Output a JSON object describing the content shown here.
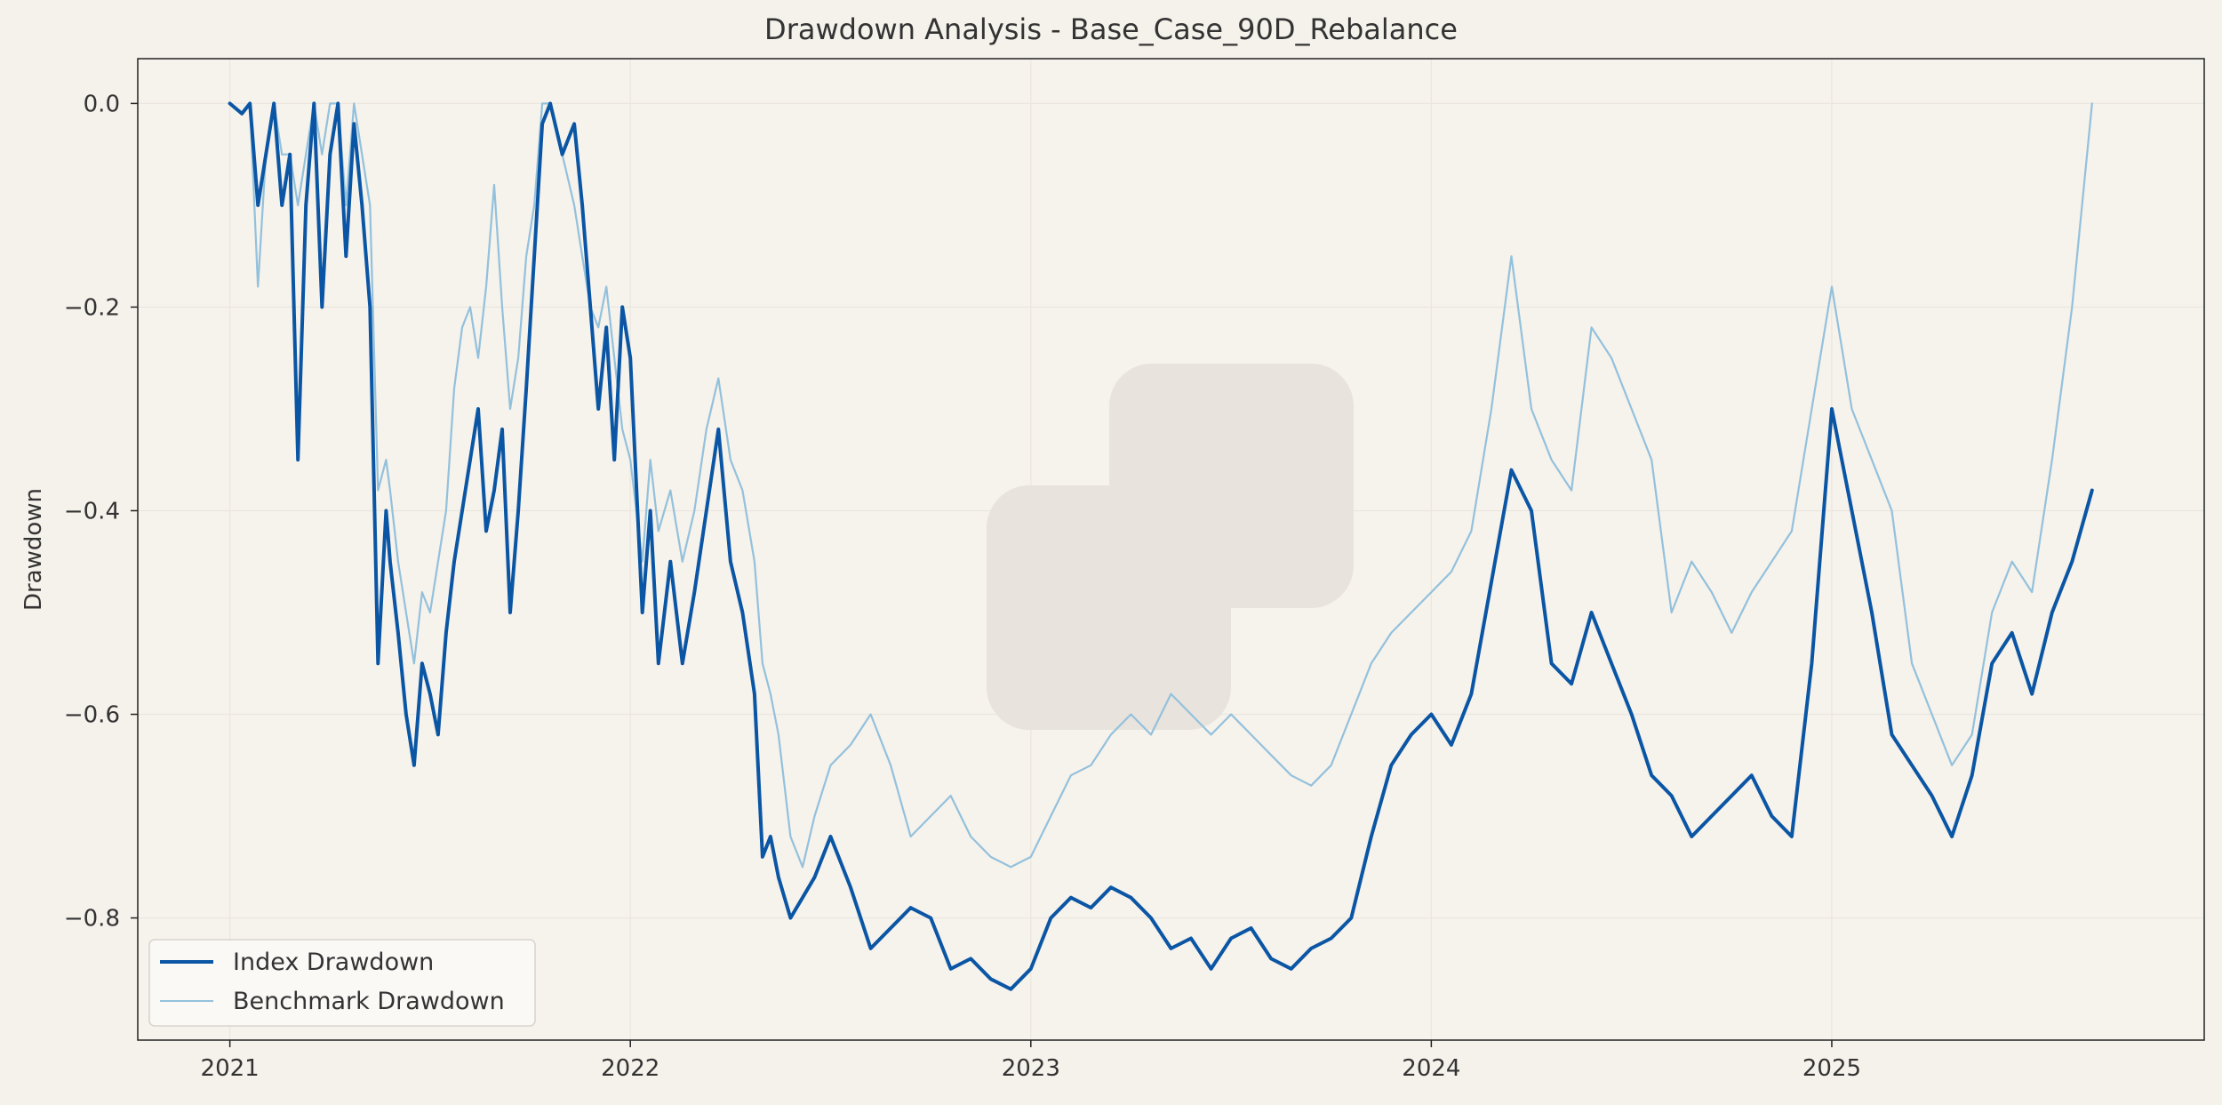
{
  "colors": {
    "background": "#f5f1eb",
    "plot_background": "#f6f2ec",
    "index_line": "#0b56a4",
    "benchmark_line": "#93c1dc",
    "grid": "#ebe6de",
    "watermark": "#e8e3dd",
    "axis": "#222222",
    "text": "#333333"
  },
  "chart_data": {
    "type": "line",
    "title": "Drawdown Analysis - Base_Case_90D_Rebalance",
    "xlabel": "",
    "ylabel": "Drawdown",
    "xlim": [
      2020.77,
      2025.93
    ],
    "ylim": [
      -0.92,
      0.044
    ],
    "grid": true,
    "legend": "lower-left",
    "x_ticks": [
      {
        "value": 2021,
        "label": "2021"
      },
      {
        "value": 2022,
        "label": "2022"
      },
      {
        "value": 2023,
        "label": "2023"
      },
      {
        "value": 2024,
        "label": "2024"
      },
      {
        "value": 2025,
        "label": "2025"
      }
    ],
    "y_ticks": [
      {
        "value": 0.0,
        "label": "0.0"
      },
      {
        "value": -0.2,
        "label": "−0.2"
      },
      {
        "value": -0.4,
        "label": "−0.4"
      },
      {
        "value": -0.6,
        "label": "−0.6"
      },
      {
        "value": -0.8,
        "label": "−0.8"
      }
    ],
    "series": [
      {
        "name": "Index Drawdown",
        "x": [
          2021.0,
          2021.03,
          2021.05,
          2021.07,
          2021.09,
          2021.11,
          2021.13,
          2021.15,
          2021.17,
          2021.19,
          2021.21,
          2021.23,
          2021.25,
          2021.27,
          2021.29,
          2021.31,
          2021.33,
          2021.35,
          2021.37,
          2021.39,
          2021.4,
          2021.42,
          2021.44,
          2021.46,
          2021.48,
          2021.5,
          2021.52,
          2021.54,
          2021.56,
          2021.58,
          2021.6,
          2021.62,
          2021.64,
          2021.66,
          2021.68,
          2021.7,
          2021.72,
          2021.74,
          2021.76,
          2021.78,
          2021.8,
          2021.83,
          2021.86,
          2021.88,
          2021.9,
          2021.92,
          2021.94,
          2021.96,
          2021.98,
          2022.0,
          2022.03,
          2022.05,
          2022.07,
          2022.1,
          2022.13,
          2022.16,
          2022.19,
          2022.22,
          2022.25,
          2022.28,
          2022.31,
          2022.33,
          2022.35,
          2022.37,
          2022.4,
          2022.43,
          2022.46,
          2022.5,
          2022.55,
          2022.6,
          2022.65,
          2022.7,
          2022.75,
          2022.8,
          2022.85,
          2022.9,
          2022.95,
          2023.0,
          2023.05,
          2023.1,
          2023.15,
          2023.2,
          2023.25,
          2023.3,
          2023.35,
          2023.4,
          2023.45,
          2023.5,
          2023.55,
          2023.6,
          2023.65,
          2023.7,
          2023.75,
          2023.8,
          2023.85,
          2023.9,
          2023.95,
          2024.0,
          2024.05,
          2024.1,
          2024.15,
          2024.2,
          2024.25,
          2024.3,
          2024.35,
          2024.4,
          2024.45,
          2024.5,
          2024.55,
          2024.6,
          2024.65,
          2024.7,
          2024.75,
          2024.8,
          2024.85,
          2024.9,
          2024.95,
          2025.0,
          2025.05,
          2025.1,
          2025.15,
          2025.2,
          2025.25,
          2025.3,
          2025.35,
          2025.4,
          2025.45,
          2025.5,
          2025.55,
          2025.6,
          2025.65
        ],
        "values": [
          0.0,
          -0.01,
          0.0,
          -0.1,
          -0.05,
          0.0,
          -0.1,
          -0.05,
          -0.35,
          -0.1,
          0.0,
          -0.2,
          -0.05,
          0.0,
          -0.15,
          -0.02,
          -0.1,
          -0.2,
          -0.55,
          -0.4,
          -0.45,
          -0.52,
          -0.6,
          -0.65,
          -0.55,
          -0.58,
          -0.62,
          -0.52,
          -0.45,
          -0.4,
          -0.35,
          -0.3,
          -0.42,
          -0.38,
          -0.32,
          -0.5,
          -0.4,
          -0.28,
          -0.15,
          -0.02,
          0.0,
          -0.05,
          -0.02,
          -0.1,
          -0.2,
          -0.3,
          -0.22,
          -0.35,
          -0.2,
          -0.25,
          -0.5,
          -0.4,
          -0.55,
          -0.45,
          -0.55,
          -0.48,
          -0.4,
          -0.32,
          -0.45,
          -0.5,
          -0.58,
          -0.74,
          -0.72,
          -0.76,
          -0.8,
          -0.78,
          -0.76,
          -0.72,
          -0.77,
          -0.83,
          -0.81,
          -0.79,
          -0.8,
          -0.85,
          -0.84,
          -0.86,
          -0.87,
          -0.85,
          -0.8,
          -0.78,
          -0.79,
          -0.77,
          -0.78,
          -0.8,
          -0.83,
          -0.82,
          -0.85,
          -0.82,
          -0.81,
          -0.84,
          -0.85,
          -0.83,
          -0.82,
          -0.8,
          -0.72,
          -0.65,
          -0.62,
          -0.6,
          -0.63,
          -0.58,
          -0.47,
          -0.36,
          -0.4,
          -0.55,
          -0.57,
          -0.5,
          -0.55,
          -0.6,
          -0.66,
          -0.68,
          -0.72,
          -0.7,
          -0.68,
          -0.66,
          -0.7,
          -0.72,
          -0.55,
          -0.3,
          -0.4,
          -0.5,
          -0.62,
          -0.65,
          -0.68,
          -0.72,
          -0.66,
          -0.55,
          -0.52,
          -0.58,
          -0.5,
          -0.45,
          -0.38
        ],
        "color": "#0b56a4"
      },
      {
        "name": "Benchmark Drawdown",
        "x": [
          2021.0,
          2021.03,
          2021.05,
          2021.07,
          2021.09,
          2021.11,
          2021.13,
          2021.15,
          2021.17,
          2021.19,
          2021.21,
          2021.23,
          2021.25,
          2021.27,
          2021.29,
          2021.31,
          2021.33,
          2021.35,
          2021.37,
          2021.39,
          2021.4,
          2021.42,
          2021.44,
          2021.46,
          2021.48,
          2021.5,
          2021.52,
          2021.54,
          2021.56,
          2021.58,
          2021.6,
          2021.62,
          2021.64,
          2021.66,
          2021.68,
          2021.7,
          2021.72,
          2021.74,
          2021.76,
          2021.78,
          2021.8,
          2021.83,
          2021.86,
          2021.88,
          2021.9,
          2021.92,
          2021.94,
          2021.96,
          2021.98,
          2022.0,
          2022.03,
          2022.05,
          2022.07,
          2022.1,
          2022.13,
          2022.16,
          2022.19,
          2022.22,
          2022.25,
          2022.28,
          2022.31,
          2022.33,
          2022.35,
          2022.37,
          2022.4,
          2022.43,
          2022.46,
          2022.5,
          2022.55,
          2022.6,
          2022.65,
          2022.7,
          2022.75,
          2022.8,
          2022.85,
          2022.9,
          2022.95,
          2023.0,
          2023.05,
          2023.1,
          2023.15,
          2023.2,
          2023.25,
          2023.3,
          2023.35,
          2023.4,
          2023.45,
          2023.5,
          2023.55,
          2023.6,
          2023.65,
          2023.7,
          2023.75,
          2023.8,
          2023.85,
          2023.9,
          2023.95,
          2024.0,
          2024.05,
          2024.1,
          2024.15,
          2024.2,
          2024.25,
          2024.3,
          2024.35,
          2024.4,
          2024.45,
          2024.5,
          2024.55,
          2024.6,
          2024.65,
          2024.7,
          2024.75,
          2024.8,
          2024.85,
          2024.9,
          2024.95,
          2025.0,
          2025.05,
          2025.1,
          2025.15,
          2025.2,
          2025.25,
          2025.3,
          2025.35,
          2025.4,
          2025.45,
          2025.5,
          2025.55,
          2025.6,
          2025.65
        ],
        "values": [
          0.0,
          -0.01,
          0.0,
          -0.18,
          -0.05,
          0.0,
          -0.05,
          -0.05,
          -0.1,
          -0.05,
          0.0,
          -0.05,
          0.0,
          0.0,
          -0.1,
          0.0,
          -0.05,
          -0.1,
          -0.38,
          -0.35,
          -0.38,
          -0.45,
          -0.5,
          -0.55,
          -0.48,
          -0.5,
          -0.45,
          -0.4,
          -0.28,
          -0.22,
          -0.2,
          -0.25,
          -0.18,
          -0.08,
          -0.2,
          -0.3,
          -0.25,
          -0.15,
          -0.1,
          0.0,
          0.0,
          -0.05,
          -0.1,
          -0.15,
          -0.2,
          -0.22,
          -0.18,
          -0.25,
          -0.32,
          -0.35,
          -0.45,
          -0.35,
          -0.42,
          -0.38,
          -0.45,
          -0.4,
          -0.32,
          -0.27,
          -0.35,
          -0.38,
          -0.45,
          -0.55,
          -0.58,
          -0.62,
          -0.72,
          -0.75,
          -0.7,
          -0.65,
          -0.63,
          -0.6,
          -0.65,
          -0.72,
          -0.7,
          -0.68,
          -0.72,
          -0.74,
          -0.75,
          -0.74,
          -0.7,
          -0.66,
          -0.65,
          -0.62,
          -0.6,
          -0.62,
          -0.58,
          -0.6,
          -0.62,
          -0.6,
          -0.62,
          -0.64,
          -0.66,
          -0.67,
          -0.65,
          -0.6,
          -0.55,
          -0.52,
          -0.5,
          -0.48,
          -0.46,
          -0.42,
          -0.3,
          -0.15,
          -0.3,
          -0.35,
          -0.38,
          -0.22,
          -0.25,
          -0.3,
          -0.35,
          -0.5,
          -0.45,
          -0.48,
          -0.52,
          -0.48,
          -0.45,
          -0.42,
          -0.3,
          -0.18,
          -0.3,
          -0.35,
          -0.4,
          -0.55,
          -0.6,
          -0.65,
          -0.62,
          -0.5,
          -0.45,
          -0.48,
          -0.35,
          -0.2,
          0.0
        ],
        "color": "#93c1dc"
      }
    ]
  }
}
